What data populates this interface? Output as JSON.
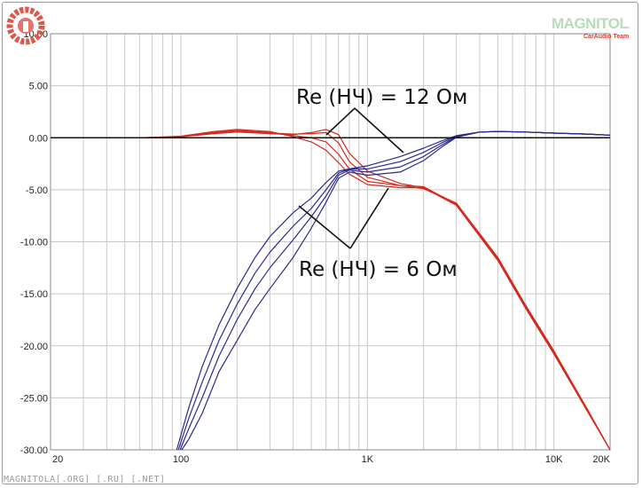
{
  "chart_data": {
    "type": "line",
    "x_scale": "log",
    "xlim": [
      20,
      20000
    ],
    "ylim": [
      -30,
      10
    ],
    "x_tick_labels": [
      {
        "value": 20,
        "label": "20"
      },
      {
        "value": 100,
        "label": "100"
      },
      {
        "value": 1000,
        "label": "1K"
      },
      {
        "value": 10000,
        "label": "10K"
      },
      {
        "value": 20000,
        "label": "20K"
      }
    ],
    "y_tick_labels": [
      "10.00",
      "5.00",
      "0.00",
      "-5.00",
      "-10.00",
      "-15.00",
      "-20.00",
      "-25.00",
      "-30.00"
    ],
    "y_ticks": [
      10,
      5,
      0,
      -5,
      -10,
      -15,
      -20,
      -25,
      -30
    ],
    "grid": true,
    "colors": {
      "lowpass": "#d42a1e",
      "highpass": "#2a2a8c",
      "reference": "#111111",
      "grid": "#c8c8c8"
    },
    "reference_line": {
      "y": 0
    },
    "series": [
      {
        "group": "lowpass",
        "x": [
          20,
          60,
          100,
          150,
          200,
          300,
          400,
          500,
          600,
          700,
          800,
          1000,
          1500,
          2000,
          3000,
          5000,
          7000,
          10000,
          15000,
          20000
        ],
        "y": [
          0,
          0,
          0.1,
          0.4,
          0.55,
          0.4,
          0.3,
          0.5,
          0.8,
          0.3,
          -1.5,
          -3.2,
          -4.4,
          -4.8,
          -6.3,
          -11.5,
          -16,
          -20.5,
          -26,
          -30
        ]
      },
      {
        "group": "lowpass",
        "x": [
          20,
          60,
          100,
          150,
          200,
          300,
          400,
          500,
          600,
          700,
          800,
          1000,
          1500,
          2000,
          3000,
          5000,
          7000,
          10000,
          15000,
          20000
        ],
        "y": [
          0,
          0,
          0.1,
          0.45,
          0.6,
          0.45,
          0.35,
          0.4,
          0.5,
          -0.5,
          -2.3,
          -3.8,
          -4.6,
          -4.9,
          -6.3,
          -11.6,
          -16.1,
          -20.6,
          -26,
          -30
        ]
      },
      {
        "group": "lowpass",
        "x": [
          20,
          60,
          100,
          150,
          200,
          300,
          400,
          500,
          600,
          700,
          800,
          1000,
          1500,
          2000,
          3000,
          5000,
          7000,
          10000,
          15000,
          20000
        ],
        "y": [
          0,
          0,
          0.1,
          0.5,
          0.7,
          0.5,
          0.2,
          0.0,
          -0.4,
          -1.6,
          -3.0,
          -4.2,
          -4.6,
          -4.7,
          -6.4,
          -11.7,
          -16.2,
          -20.7,
          -26.1,
          -30
        ]
      },
      {
        "group": "lowpass",
        "x": [
          20,
          60,
          100,
          150,
          200,
          300,
          400,
          500,
          600,
          700,
          800,
          1000,
          1500,
          2000,
          3000,
          5000,
          7000,
          10000,
          15000,
          20000
        ],
        "y": [
          0,
          0,
          0.15,
          0.6,
          0.8,
          0.6,
          0.1,
          -0.4,
          -1.2,
          -2.4,
          -3.5,
          -4.5,
          -4.8,
          -4.8,
          -6.5,
          -11.8,
          -16.3,
          -20.8,
          -26.2,
          -30
        ]
      },
      {
        "group": "highpass",
        "x": [
          95,
          110,
          130,
          160,
          200,
          250,
          300,
          400,
          500,
          600,
          700,
          800,
          1000,
          1500,
          2000,
          2500,
          3000,
          4000,
          5000,
          7000,
          10000,
          15000,
          20000
        ],
        "y": [
          -30,
          -26,
          -22,
          -18,
          -14.5,
          -11.5,
          -9.5,
          -7.2,
          -5.8,
          -4.3,
          -3.2,
          -3.0,
          -2.7,
          -1.8,
          -1.0,
          -0.3,
          0.2,
          0.55,
          0.6,
          0.55,
          0.45,
          0.35,
          0.25
        ]
      },
      {
        "group": "highpass",
        "x": [
          97,
          110,
          130,
          160,
          200,
          250,
          300,
          400,
          500,
          600,
          700,
          800,
          1000,
          1500,
          2000,
          2500,
          3000,
          4000,
          5000,
          7000,
          10000,
          15000,
          20000
        ],
        "y": [
          -30,
          -27,
          -23.5,
          -19.5,
          -16,
          -13,
          -11,
          -8.5,
          -6.8,
          -5.0,
          -3.4,
          -3.0,
          -3.0,
          -2.3,
          -1.4,
          -0.5,
          0.15,
          0.55,
          0.6,
          0.55,
          0.45,
          0.35,
          0.25
        ]
      },
      {
        "group": "highpass",
        "x": [
          99,
          110,
          130,
          160,
          200,
          250,
          300,
          400,
          500,
          600,
          700,
          800,
          1000,
          1500,
          2000,
          2500,
          3000,
          4000,
          5000,
          7000,
          10000,
          15000,
          20000
        ],
        "y": [
          -30,
          -28,
          -25,
          -21,
          -17.5,
          -14.5,
          -12.5,
          -9.8,
          -7.6,
          -5.6,
          -3.6,
          -3.1,
          -3.3,
          -2.8,
          -1.8,
          -0.7,
          0.1,
          0.55,
          0.6,
          0.55,
          0.45,
          0.35,
          0.25
        ]
      },
      {
        "group": "highpass",
        "x": [
          101,
          110,
          130,
          160,
          200,
          250,
          300,
          400,
          500,
          600,
          700,
          800,
          1000,
          1500,
          2000,
          2500,
          3000,
          4000,
          5000,
          7000,
          10000,
          15000,
          20000
        ],
        "y": [
          -30,
          -29,
          -26.5,
          -22.5,
          -19.5,
          -16.5,
          -14.5,
          -11.5,
          -8.7,
          -6.2,
          -3.9,
          -3.3,
          -3.6,
          -3.3,
          -2.2,
          -0.9,
          0.05,
          0.55,
          0.6,
          0.55,
          0.45,
          0.35,
          0.25
        ]
      }
    ],
    "annotations": [
      {
        "text": "Re (НЧ) = 12 Ом"
      },
      {
        "text": "Re (НЧ) = 6 Ом"
      }
    ]
  },
  "watermark": {
    "brand": "MAGNITOLA",
    "brand_sub": "CarAudio Team",
    "footer": "MAGNITOLA[.ORG] [.RU] [.NET]"
  }
}
